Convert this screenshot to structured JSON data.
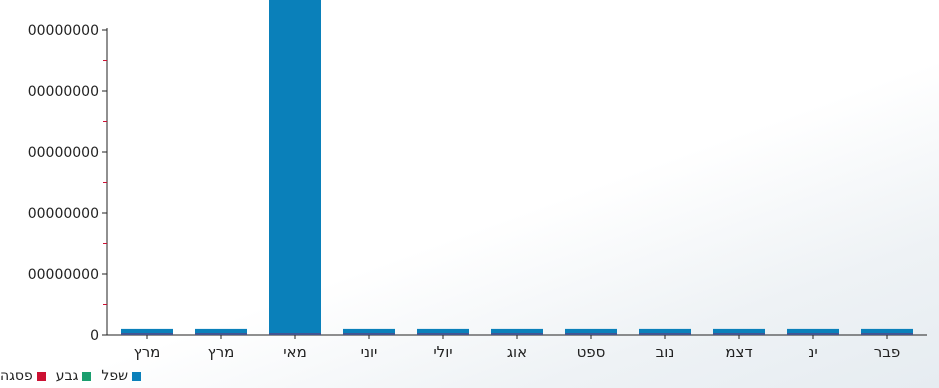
{
  "chart_data": {
    "type": "bar",
    "categories": [
      "מרץ",
      "מרץ",
      "מאי",
      "יוני",
      "יולי",
      "אוג",
      "ספט",
      "נוב",
      "דצמ",
      "ינ",
      "פבר"
    ],
    "series": [
      {
        "name": "שפל",
        "color": "#0a80ba",
        "values": [
          100000000,
          100000000,
          5750000000,
          100000000,
          100000000,
          100000000,
          100000000,
          100000000,
          100000000,
          100000000,
          100000000
        ]
      },
      {
        "name": "גבע",
        "color": "#1a9e6e",
        "values": [
          0,
          0,
          0,
          0,
          0,
          0,
          0,
          0,
          0,
          0,
          0
        ]
      },
      {
        "name": "פסגה",
        "color": "#cc1133",
        "values": [
          0,
          0,
          0,
          0,
          0,
          0,
          0,
          0,
          0,
          0,
          0
        ]
      }
    ],
    "y_ticks": [
      {
        "value": 0,
        "label": "0"
      },
      {
        "value": 1000000000,
        "label": "00000000"
      },
      {
        "value": 2000000000,
        "label": "00000000"
      },
      {
        "value": 3000000000,
        "label": "00000000"
      },
      {
        "value": 4000000000,
        "label": "00000000"
      },
      {
        "value": 5000000000,
        "label": "00000000"
      },
      {
        "value": 6000000000,
        "label": "00000000"
      }
    ],
    "ylim": [
      0,
      6000000000
    ],
    "grid": false,
    "legend_position": "bottom-left",
    "axis_color": "#222222",
    "minor_tick_color": "#cc1133"
  }
}
